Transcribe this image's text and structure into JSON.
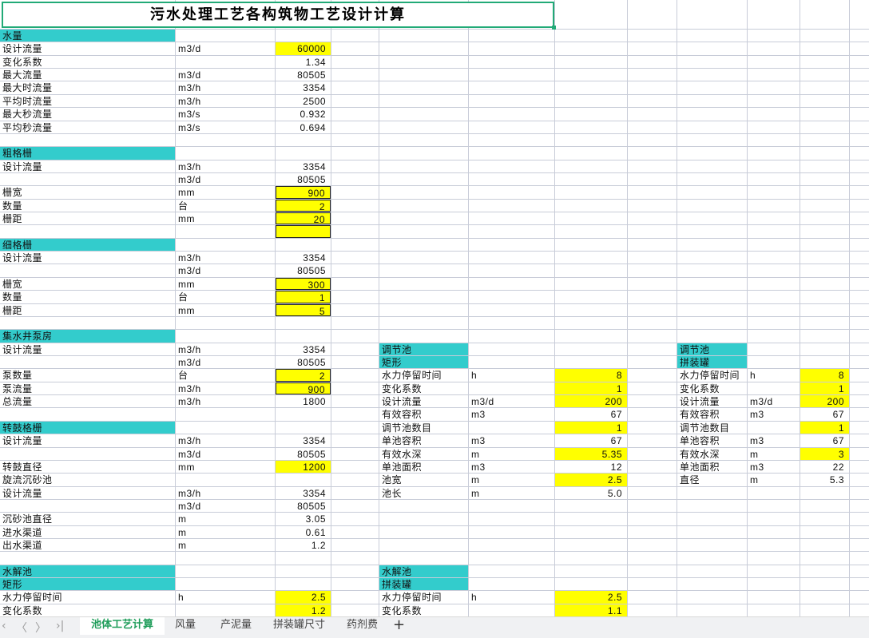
{
  "title": "污水处理工艺各构筑物工艺设计计算",
  "colors": {
    "header_fill": "#33cccc",
    "input_fill": "#ffff00",
    "selection": "#22aa77"
  },
  "rows": [
    [
      {
        "c": "A",
        "t": "水量",
        "f": "teal"
      }
    ],
    [
      {
        "c": "A",
        "t": "设计流量"
      },
      {
        "c": "B",
        "t": "m3/d"
      },
      {
        "c": "C",
        "t": "60000",
        "f": "yellow"
      }
    ],
    [
      {
        "c": "A",
        "t": "变化系数"
      },
      {
        "c": "C",
        "t": "1.34"
      }
    ],
    [
      {
        "c": "A",
        "t": "最大流量"
      },
      {
        "c": "B",
        "t": "m3/d"
      },
      {
        "c": "C",
        "t": "80505"
      }
    ],
    [
      {
        "c": "A",
        "t": "最大时流量"
      },
      {
        "c": "B",
        "t": "m3/h"
      },
      {
        "c": "C",
        "t": "3354"
      }
    ],
    [
      {
        "c": "A",
        "t": "平均时流量"
      },
      {
        "c": "B",
        "t": "m3/h"
      },
      {
        "c": "C",
        "t": "2500"
      }
    ],
    [
      {
        "c": "A",
        "t": "最大秒流量"
      },
      {
        "c": "B",
        "t": "m3/s"
      },
      {
        "c": "C",
        "t": "0.932"
      }
    ],
    [
      {
        "c": "A",
        "t": "平均秒流量"
      },
      {
        "c": "B",
        "t": "m3/s"
      },
      {
        "c": "C",
        "t": "0.694"
      }
    ],
    [],
    [
      {
        "c": "A",
        "t": "粗格栅",
        "f": "teal"
      }
    ],
    [
      {
        "c": "A",
        "t": "设计流量"
      },
      {
        "c": "B",
        "t": "m3/h"
      },
      {
        "c": "C",
        "t": "3354"
      }
    ],
    [
      {
        "c": "B",
        "t": "m3/d"
      },
      {
        "c": "C",
        "t": "80505"
      }
    ],
    [
      {
        "c": "A",
        "t": "栅宽"
      },
      {
        "c": "B",
        "t": "mm"
      },
      {
        "c": "C",
        "t": "900",
        "f": "yellow",
        "b": 1
      }
    ],
    [
      {
        "c": "A",
        "t": "数量"
      },
      {
        "c": "B",
        "t": "台"
      },
      {
        "c": "C",
        "t": "2",
        "f": "yellow",
        "b": 1
      }
    ],
    [
      {
        "c": "A",
        "t": "栅距"
      },
      {
        "c": "B",
        "t": "mm"
      },
      {
        "c": "C",
        "t": "20",
        "f": "yellow",
        "b": 1
      }
    ],
    [
      {
        "c": "C",
        "t": "",
        "f": "yellow",
        "b": 1
      }
    ],
    [
      {
        "c": "A",
        "t": "细格栅",
        "f": "teal"
      }
    ],
    [
      {
        "c": "A",
        "t": "设计流量"
      },
      {
        "c": "B",
        "t": "m3/h"
      },
      {
        "c": "C",
        "t": "3354"
      }
    ],
    [
      {
        "c": "B",
        "t": "m3/d"
      },
      {
        "c": "C",
        "t": "80505"
      }
    ],
    [
      {
        "c": "A",
        "t": "栅宽"
      },
      {
        "c": "B",
        "t": "mm"
      },
      {
        "c": "C",
        "t": "300",
        "f": "yellow",
        "b": 1
      }
    ],
    [
      {
        "c": "A",
        "t": "数量"
      },
      {
        "c": "B",
        "t": "台"
      },
      {
        "c": "C",
        "t": "1",
        "f": "yellow",
        "b": 1
      }
    ],
    [
      {
        "c": "A",
        "t": "栅距"
      },
      {
        "c": "B",
        "t": "mm"
      },
      {
        "c": "C",
        "t": "5",
        "f": "yellow",
        "b": 1
      }
    ],
    [],
    [
      {
        "c": "A",
        "t": "集水井泵房",
        "f": "teal"
      }
    ],
    [
      {
        "c": "A",
        "t": "设计流量"
      },
      {
        "c": "B",
        "t": "m3/h"
      },
      {
        "c": "C",
        "t": "3354"
      },
      {
        "c": "E",
        "t": "调节池",
        "f": "teal"
      },
      {
        "c": "I",
        "t": "调节池",
        "f": "teal"
      }
    ],
    [
      {
        "c": "B",
        "t": "m3/d"
      },
      {
        "c": "C",
        "t": "80505"
      },
      {
        "c": "E",
        "t": "矩形",
        "f": "teal"
      },
      {
        "c": "I",
        "t": "拼装罐",
        "f": "teal"
      }
    ],
    [
      {
        "c": "A",
        "t": "泵数量"
      },
      {
        "c": "B",
        "t": "台"
      },
      {
        "c": "C",
        "t": "2",
        "f": "yellow",
        "b": 1
      },
      {
        "c": "E",
        "t": "水力停留时间"
      },
      {
        "c": "F",
        "t": "h"
      },
      {
        "c": "G",
        "t": "8",
        "f": "yellow"
      },
      {
        "c": "I",
        "t": "水力停留时间"
      },
      {
        "c": "J",
        "t": "h"
      },
      {
        "c": "K",
        "t": "8",
        "f": "yellow"
      }
    ],
    [
      {
        "c": "A",
        "t": "泵流量"
      },
      {
        "c": "B",
        "t": "m3/h"
      },
      {
        "c": "C",
        "t": "900",
        "f": "yellow",
        "b": 1
      },
      {
        "c": "E",
        "t": "变化系数"
      },
      {
        "c": "G",
        "t": "1",
        "f": "yellow"
      },
      {
        "c": "I",
        "t": "变化系数"
      },
      {
        "c": "K",
        "t": "1",
        "f": "yellow"
      }
    ],
    [
      {
        "c": "A",
        "t": "总流量"
      },
      {
        "c": "B",
        "t": "m3/h"
      },
      {
        "c": "C",
        "t": "1800"
      },
      {
        "c": "E",
        "t": "设计流量"
      },
      {
        "c": "F",
        "t": "m3/d"
      },
      {
        "c": "G",
        "t": "200",
        "f": "yellow"
      },
      {
        "c": "I",
        "t": "设计流量"
      },
      {
        "c": "J",
        "t": "m3/d"
      },
      {
        "c": "K",
        "t": "200",
        "f": "yellow"
      }
    ],
    [
      {
        "c": "E",
        "t": "有效容积"
      },
      {
        "c": "F",
        "t": "m3"
      },
      {
        "c": "G",
        "t": "67"
      },
      {
        "c": "I",
        "t": "有效容积"
      },
      {
        "c": "J",
        "t": "m3"
      },
      {
        "c": "K",
        "t": "67"
      }
    ],
    [
      {
        "c": "A",
        "t": "转鼓格栅",
        "f": "teal"
      },
      {
        "c": "E",
        "t": "调节池数目"
      },
      {
        "c": "G",
        "t": "1",
        "f": "yellow"
      },
      {
        "c": "I",
        "t": "调节池数目"
      },
      {
        "c": "K",
        "t": "1",
        "f": "yellow"
      }
    ],
    [
      {
        "c": "A",
        "t": "设计流量"
      },
      {
        "c": "B",
        "t": "m3/h"
      },
      {
        "c": "C",
        "t": "3354"
      },
      {
        "c": "E",
        "t": "单池容积"
      },
      {
        "c": "F",
        "t": "m3"
      },
      {
        "c": "G",
        "t": "67"
      },
      {
        "c": "I",
        "t": "单池容积"
      },
      {
        "c": "J",
        "t": "m3"
      },
      {
        "c": "K",
        "t": "67"
      }
    ],
    [
      {
        "c": "B",
        "t": "m3/d"
      },
      {
        "c": "C",
        "t": "80505"
      },
      {
        "c": "E",
        "t": "有效水深"
      },
      {
        "c": "F",
        "t": "m"
      },
      {
        "c": "G",
        "t": "5.35",
        "f": "yellow"
      },
      {
        "c": "I",
        "t": "有效水深"
      },
      {
        "c": "J",
        "t": "m"
      },
      {
        "c": "K",
        "t": "3",
        "f": "yellow"
      }
    ],
    [
      {
        "c": "A",
        "t": "转鼓直径"
      },
      {
        "c": "B",
        "t": "mm"
      },
      {
        "c": "C",
        "t": "1200",
        "f": "yellow"
      },
      {
        "c": "E",
        "t": "单池面积"
      },
      {
        "c": "F",
        "t": "m3"
      },
      {
        "c": "G",
        "t": "12"
      },
      {
        "c": "I",
        "t": "单池面积"
      },
      {
        "c": "J",
        "t": "m3"
      },
      {
        "c": "K",
        "t": "22"
      }
    ],
    [
      {
        "c": "A",
        "t": "旋流沉砂池"
      },
      {
        "c": "E",
        "t": "池宽"
      },
      {
        "c": "F",
        "t": "m"
      },
      {
        "c": "G",
        "t": "2.5",
        "f": "yellow"
      },
      {
        "c": "I",
        "t": "直径"
      },
      {
        "c": "J",
        "t": "m"
      },
      {
        "c": "K",
        "t": "5.3"
      }
    ],
    [
      {
        "c": "A",
        "t": "设计流量"
      },
      {
        "c": "B",
        "t": "m3/h"
      },
      {
        "c": "C",
        "t": "3354"
      },
      {
        "c": "E",
        "t": "池长"
      },
      {
        "c": "F",
        "t": "m"
      },
      {
        "c": "G",
        "t": "5.0"
      }
    ],
    [
      {
        "c": "B",
        "t": "m3/d"
      },
      {
        "c": "C",
        "t": "80505"
      }
    ],
    [
      {
        "c": "A",
        "t": "沉砂池直径"
      },
      {
        "c": "B",
        "t": "m"
      },
      {
        "c": "C",
        "t": "3.05"
      }
    ],
    [
      {
        "c": "A",
        "t": "进水渠道"
      },
      {
        "c": "B",
        "t": "m"
      },
      {
        "c": "C",
        "t": "0.61"
      }
    ],
    [
      {
        "c": "A",
        "t": "出水渠道"
      },
      {
        "c": "B",
        "t": "m"
      },
      {
        "c": "C",
        "t": "1.2"
      }
    ],
    [],
    [
      {
        "c": "A",
        "t": "水解池",
        "f": "teal"
      },
      {
        "c": "E",
        "t": "水解池",
        "f": "teal"
      }
    ],
    [
      {
        "c": "A",
        "t": "矩形",
        "f": "teal"
      },
      {
        "c": "E",
        "t": "拼装罐",
        "f": "teal"
      }
    ],
    [
      {
        "c": "A",
        "t": "水力停留时间"
      },
      {
        "c": "B",
        "t": "h"
      },
      {
        "c": "C",
        "t": "2.5",
        "f": "yellow"
      },
      {
        "c": "E",
        "t": "水力停留时间"
      },
      {
        "c": "F",
        "t": "h"
      },
      {
        "c": "G",
        "t": "2.5",
        "f": "yellow"
      }
    ],
    [
      {
        "c": "A",
        "t": "变化系数"
      },
      {
        "c": "C",
        "t": "1.2",
        "f": "yellow"
      },
      {
        "c": "E",
        "t": "变化系数"
      },
      {
        "c": "G",
        "t": "1.1",
        "f": "yellow"
      }
    ]
  ],
  "sheet_tabs": [
    "池体工艺计算",
    "风量",
    "产泥量",
    "拼装罐尺寸",
    "药剂费"
  ],
  "active_tab": "池体工艺计算",
  "add_sheet": "+",
  "nav": {
    "first": "|<",
    "prev": "<",
    "next": ">",
    "last": ">|"
  }
}
